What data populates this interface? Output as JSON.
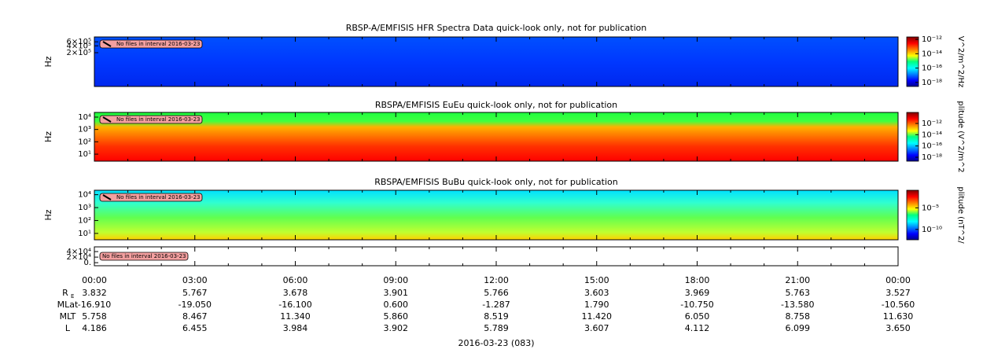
{
  "chart_data": [
    {
      "type": "spectrogram",
      "title": "RBSP-A/EMFISIS  HFR Spectra Data quick-look only, not for publication",
      "ylabel": "Hz",
      "log_y": true,
      "ylim": [
        6600,
        980000
      ],
      "yticks": [
        {
          "value": 200000,
          "label": "2×10⁵"
        },
        {
          "value": 400000,
          "label": "4×10⁵"
        },
        {
          "value": 600000,
          "label": "6×10⁵"
        }
      ],
      "annotation": "No files in interval 2016-03-23",
      "colorbar": {
        "label": "V^2/m^2/Hz",
        "clim": [
          2.7e-19,
          2.2e-12
        ],
        "ticks": [
          {
            "value": 1e-12,
            "label": "10⁻¹²"
          },
          {
            "value": 1e-14,
            "label": "10⁻¹⁴"
          },
          {
            "value": 1e-16,
            "label": "10⁻¹⁶"
          },
          {
            "value": 1e-18,
            "label": "10⁻¹⁸"
          }
        ]
      }
    },
    {
      "type": "spectrogram",
      "title": "RBSPA/EMFISIS  EuEu quick-look only, not for publication",
      "ylabel": "Hz",
      "log_y": true,
      "ylim": [
        2.7,
        24000
      ],
      "yticks": [
        {
          "value": 10,
          "label": "10¹"
        },
        {
          "value": 100,
          "label": "10²"
        },
        {
          "value": 1000,
          "label": "10³"
        },
        {
          "value": 10000,
          "label": "10⁴"
        }
      ],
      "annotation": "No files in interval 2016-03-23",
      "colorbar": {
        "label": "plitude (V^2/m^2",
        "clim": [
          2e-19,
          9e-11
        ],
        "ticks": [
          {
            "value": 1e-12,
            "label": "10⁻¹²"
          },
          {
            "value": 1e-14,
            "label": "10⁻¹⁴"
          },
          {
            "value": 1e-16,
            "label": "10⁻¹⁶"
          },
          {
            "value": 1e-18,
            "label": "10⁻¹⁸"
          }
        ]
      }
    },
    {
      "type": "spectrogram",
      "title": "RBSPA/EMFISIS  BuBu quick-look only, not for publication",
      "ylabel": "Hz",
      "log_y": true,
      "ylim": [
        3.2,
        22000
      ],
      "yticks": [
        {
          "value": 10,
          "label": "10¹"
        },
        {
          "value": 100,
          "label": "10²"
        },
        {
          "value": 1000,
          "label": "10³"
        },
        {
          "value": 10000,
          "label": "10⁴"
        }
      ],
      "annotation": "No files in interval 2016-03-23",
      "colorbar": {
        "label": "plitude (nT^2/",
        "clim": [
          4e-13,
          0.12
        ],
        "ticks": [
          {
            "value": 1e-05,
            "label": "10⁻⁵"
          },
          {
            "value": 1e-10,
            "label": "10⁻¹⁰"
          }
        ]
      }
    },
    {
      "type": "empty",
      "log_y": false,
      "ylim": [
        -11000,
        57000
      ],
      "yticks": [
        {
          "value": 0,
          "label": "0."
        },
        {
          "value": 20000,
          "label": "2×10⁴"
        },
        {
          "value": 40000,
          "label": "4×10⁴"
        }
      ],
      "annotation": "No files in interval 2016-03-23"
    }
  ],
  "ephemeris": {
    "times": [
      "00:00",
      "03:00",
      "06:00",
      "09:00",
      "12:00",
      "15:00",
      "18:00",
      "21:00",
      "00:00"
    ],
    "rows": [
      {
        "label": "R",
        "subscript": "E",
        "values": [
          "3.832",
          "5.767",
          "3.678",
          "3.901",
          "5.766",
          "3.603",
          "3.969",
          "5.763",
          "3.527"
        ]
      },
      {
        "label": "MLat",
        "values": [
          "-16.910",
          "-19.050",
          "-16.100",
          "0.600",
          "-1.287",
          "1.790",
          "-10.750",
          "-13.580",
          "-10.560"
        ]
      },
      {
        "label": "MLT",
        "values": [
          "5.758",
          "8.467",
          "11.340",
          "5.860",
          "8.519",
          "11.420",
          "6.050",
          "8.758",
          "11.630"
        ]
      },
      {
        "label": "L",
        "values": [
          "4.186",
          "6.455",
          "3.984",
          "3.902",
          "5.789",
          "3.607",
          "4.112",
          "6.099",
          "3.650"
        ]
      }
    ],
    "date": "2016-03-23 (083)"
  }
}
